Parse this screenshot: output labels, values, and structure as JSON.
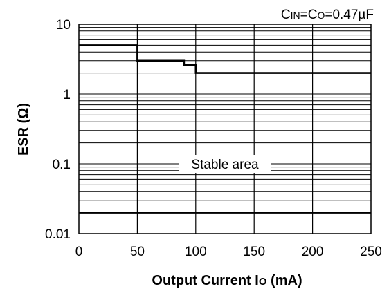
{
  "chart_data": {
    "type": "line",
    "condition": "CIN=CO=0.47µF",
    "condition_parts": {
      "c1": "C",
      "in": "IN",
      "eq1": "=",
      "c2": "C",
      "o": "O",
      "value": "=0.47µF"
    },
    "xlabel": {
      "main": "Output Current I",
      "sub": "O",
      "unit": " (mA)"
    },
    "ylabel": "ESR (Ω)",
    "xlim": [
      0,
      250
    ],
    "ylim": [
      0.01,
      10
    ],
    "yscale": "log",
    "x_ticks": [
      "0",
      "50",
      "100",
      "150",
      "200",
      "250"
    ],
    "y_ticks": [
      "10",
      "1",
      "0.1",
      "0.01"
    ],
    "grid": true,
    "series": [
      {
        "role": "upper-limit",
        "x": [
          0,
          50,
          50,
          90,
          90,
          100,
          100,
          250
        ],
        "y": [
          5.0,
          5.0,
          3.0,
          3.0,
          2.6,
          2.6,
          2.0,
          2.0
        ]
      },
      {
        "role": "lower-limit",
        "x": [
          0,
          250
        ],
        "y": [
          0.02,
          0.02
        ]
      }
    ],
    "annotations": [
      {
        "text": "Stable area",
        "x": 125,
        "y": 0.1
      }
    ]
  }
}
